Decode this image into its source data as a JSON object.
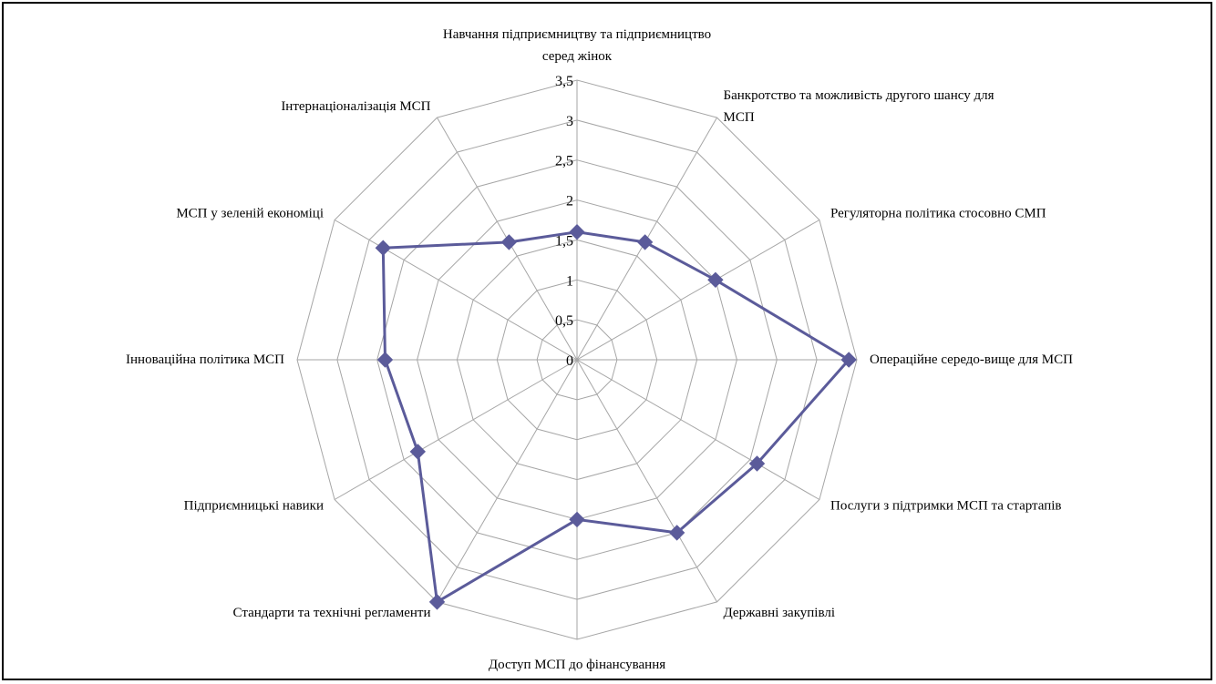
{
  "chart_data": {
    "type": "radar",
    "axes": [
      "Навчання підприємництву та підприємництво серед жінок",
      "Банкротство та можливість другого шансу для МСП",
      "Регуляторна політика стосовно СМП",
      "Операційне середо-вище для МСП",
      "Послуги з підтримки МСП та стартапів",
      "Державні закупівлі",
      "Доступ МСП до фінансування",
      "Стандарти та технічні регламенти",
      "Підприємницькі навики",
      "Інноваційна політика МСП",
      "МСП у зеленій економіці",
      "Інтернаціоналізація МСП"
    ],
    "axis_label_lines": [
      [
        "Навчання підприємництву та підприємництво",
        "серед жінок"
      ],
      [
        "Банкротство та можливість другого шансу для",
        "МСП"
      ],
      [
        "Регуляторна політика стосовно СМП"
      ],
      [
        "Операційне середо-вище для МСП"
      ],
      [
        "Послуги з підтримки МСП та стартапів"
      ],
      [
        "Державні закупівлі"
      ],
      [
        "Доступ МСП до фінансування"
      ],
      [
        "Стандарти та технічні регламенти"
      ],
      [
        "Підприємницькі навики"
      ],
      [
        "Інноваційна політика МСП"
      ],
      [
        "МСП у зеленій економіці"
      ],
      [
        "Інтернаціоналізація МСП"
      ]
    ],
    "series": [
      {
        "values": [
          1.6,
          1.7,
          2.0,
          3.4,
          2.6,
          2.5,
          2.0,
          3.5,
          2.3,
          2.4,
          2.8,
          1.7
        ]
      }
    ],
    "ticks": [
      "0",
      "0,5",
      "1",
      "1,5",
      "2",
      "2,5",
      "3",
      "3,5"
    ],
    "tick_values": [
      0,
      0.5,
      1,
      1.5,
      2,
      2.5,
      3,
      3.5
    ],
    "range": [
      0,
      3.5
    ],
    "grid": true,
    "legend": "none",
    "colors": {
      "series": "#5b5b9a",
      "grid": "#a6a6a6",
      "border": "#000000"
    },
    "marker": "diamond"
  }
}
